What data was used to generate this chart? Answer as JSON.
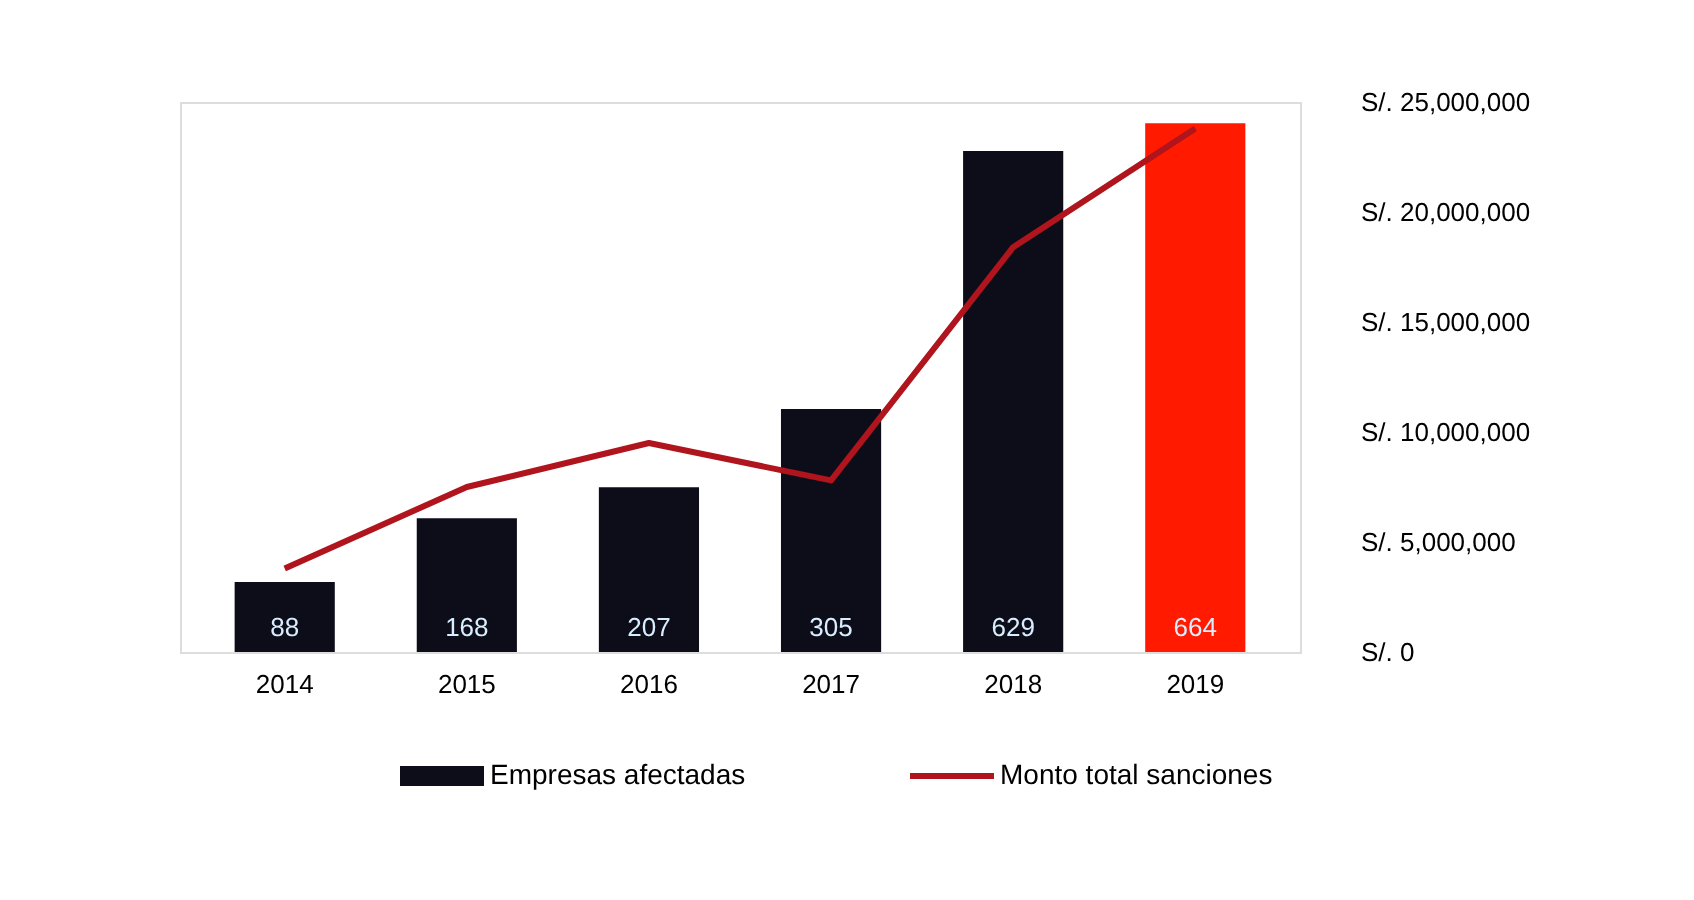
{
  "chart_data": {
    "type": "bar",
    "categories": [
      "2014",
      "2015",
      "2016",
      "2017",
      "2018",
      "2019"
    ],
    "series": [
      {
        "name": "Empresas afectadas",
        "color": "#0d0d1a",
        "colors": [
          "#0d0d1a",
          "#0d0d1a",
          "#0d0d1a",
          "#0d0d1a",
          "#0d0d1a",
          "#ff1a00"
        ],
        "values": [
          88,
          168,
          207,
          305,
          629,
          664
        ],
        "value_labels": [
          "88",
          "168",
          "207",
          "305",
          "629",
          "664"
        ]
      },
      {
        "name": "Monto total sanciones",
        "type": "line",
        "axis": "y2",
        "color": "#b0141c",
        "values": [
          3800000,
          7500000,
          9500000,
          7800000,
          18400000,
          23800000
        ]
      }
    ],
    "y2lim": [
      0,
      25000000
    ],
    "y2ticks": [
      {
        "value": 0,
        "label": "S/. 0"
      },
      {
        "value": 5000000,
        "label": "S/. 5,000,000"
      },
      {
        "value": 10000000,
        "label": "S/. 10,000,000"
      },
      {
        "value": 15000000,
        "label": "S/. 15,000,000"
      },
      {
        "value": 20000000,
        "label": "S/. 20,000,000"
      },
      {
        "value": 25000000,
        "label": "S/. 25,000,000"
      }
    ],
    "grid": false,
    "legend": "bottom",
    "marker": "none"
  }
}
